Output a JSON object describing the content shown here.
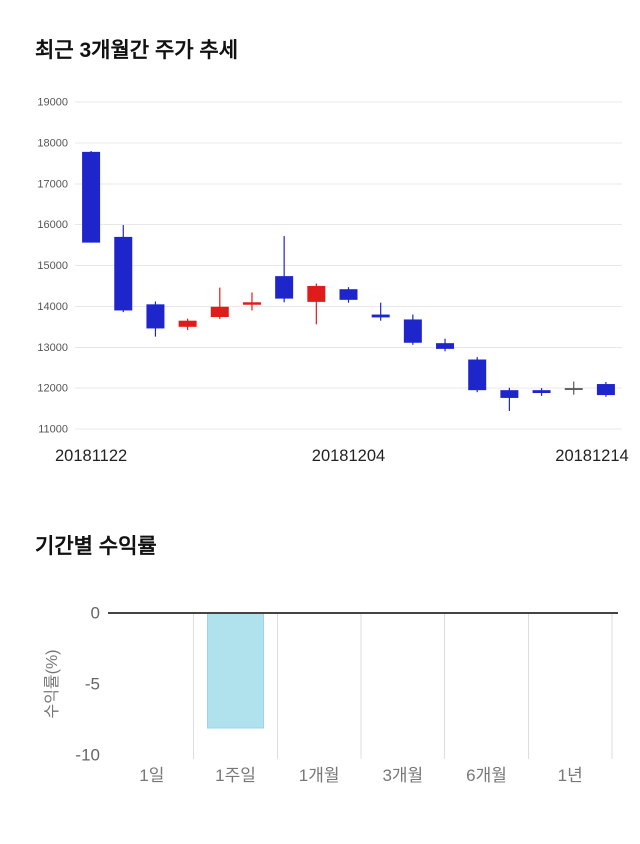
{
  "sections": [
    {
      "title": "최근 3개월간 주가 추세"
    },
    {
      "title": "기간별 수익률"
    }
  ],
  "colors": {
    "candle_up": "#e01b1b",
    "candle_down": "#1e26cb",
    "candle_flat": "#555555",
    "grid": "#e8e8e8",
    "axis_text": "#555555",
    "date_text": "#222222",
    "bar_fill": "#b0e2ee",
    "bar_border": "#9cd6e5",
    "zero_line": "#444444",
    "bar_axis_text": "#666666",
    "category_text": "#777777"
  },
  "chart_data": [
    {
      "type": "candlestick",
      "title": "최근 3개월간 주가 추세",
      "ylim": [
        11000,
        19000
      ],
      "yticks": [
        19000,
        18000,
        17000,
        16000,
        15000,
        14000,
        13000,
        12000,
        11000
      ],
      "x_tick_labels": [
        "20181122",
        "20181204",
        "20181214"
      ],
      "x_label_indices": [
        0,
        8,
        16
      ],
      "candles": [
        {
          "open": 17780,
          "high": 17800,
          "low": 15560,
          "close": 15560,
          "dir": "down"
        },
        {
          "open": 15700,
          "high": 15990,
          "low": 13860,
          "close": 13900,
          "dir": "down"
        },
        {
          "open": 14050,
          "high": 14120,
          "low": 13260,
          "close": 13460,
          "dir": "down"
        },
        {
          "open": 13500,
          "high": 13700,
          "low": 13420,
          "close": 13650,
          "dir": "up"
        },
        {
          "open": 13740,
          "high": 14460,
          "low": 13690,
          "close": 13990,
          "dir": "up"
        },
        {
          "open": 14040,
          "high": 14340,
          "low": 13900,
          "close": 14100,
          "dir": "up"
        },
        {
          "open": 14740,
          "high": 15720,
          "low": 14100,
          "close": 14190,
          "dir": "down"
        },
        {
          "open": 14110,
          "high": 14560,
          "low": 13560,
          "close": 14500,
          "dir": "up"
        },
        {
          "open": 14420,
          "high": 14470,
          "low": 14090,
          "close": 14160,
          "dir": "down"
        },
        {
          "open": 13800,
          "high": 14090,
          "low": 13650,
          "close": 13730,
          "dir": "down"
        },
        {
          "open": 13680,
          "high": 13800,
          "low": 13060,
          "close": 13110,
          "dir": "down"
        },
        {
          "open": 13100,
          "high": 13210,
          "low": 12900,
          "close": 12960,
          "dir": "down"
        },
        {
          "open": 12700,
          "high": 12760,
          "low": 11900,
          "close": 11950,
          "dir": "down"
        },
        {
          "open": 11950,
          "high": 12010,
          "low": 11440,
          "close": 11760,
          "dir": "down"
        },
        {
          "open": 11950,
          "high": 12000,
          "low": 11810,
          "close": 11880,
          "dir": "down"
        },
        {
          "open": 12000,
          "high": 12160,
          "low": 11840,
          "close": 12000,
          "dir": "flat"
        },
        {
          "open": 12100,
          "high": 12150,
          "low": 11790,
          "close": 11830,
          "dir": "down"
        }
      ]
    },
    {
      "type": "bar",
      "title": "기간별 수익률",
      "categories": [
        "1일",
        "1주일",
        "1개월",
        "3개월",
        "6개월",
        "1년"
      ],
      "values": [
        null,
        -8.1,
        null,
        null,
        null,
        null
      ],
      "ylabel": "수익률(%)",
      "ylim": [
        -10,
        0
      ],
      "yticks": [
        0,
        -5,
        -10
      ]
    }
  ]
}
